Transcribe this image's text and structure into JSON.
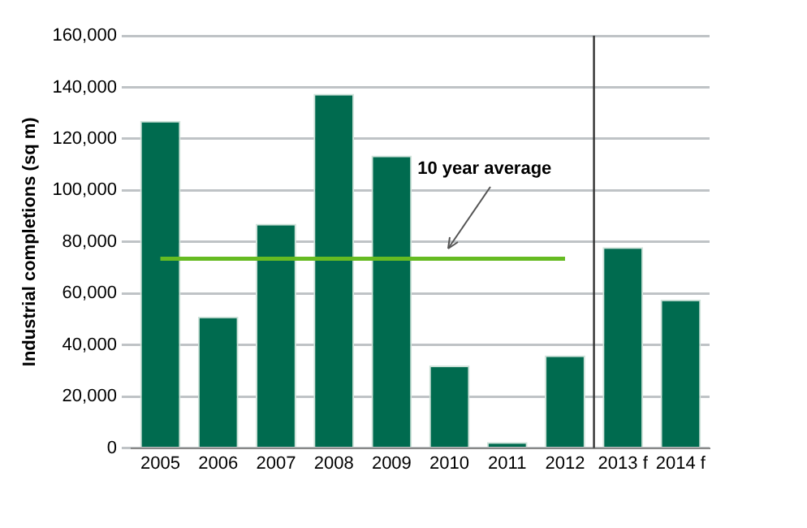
{
  "chart_data": {
    "type": "bar",
    "ylabel": "Industrial completions (sq m)",
    "categories": [
      "2005",
      "2006",
      "2007",
      "2008",
      "2009",
      "2010",
      "2011",
      "2012",
      "2013 f",
      "2014 f"
    ],
    "series": [
      {
        "color": "#006b4f",
        "values": [
          127000,
          51000,
          87000,
          137500,
          113500,
          32000,
          2300,
          36000,
          78000,
          57600
        ]
      },
      {
        "type": "line",
        "name": "10 year average",
        "color": "#66bb22",
        "values": [
          73500,
          73500,
          73500,
          73500,
          73500,
          73500,
          73500,
          73500,
          null,
          null
        ]
      }
    ],
    "ylim": [
      0,
      160000
    ],
    "yticks": [
      0,
      {
        "value": 20000,
        "label": "20,000"
      },
      {
        "value": 40000,
        "label": "40,000"
      },
      {
        "value": 60000,
        "label": "60,000"
      },
      {
        "value": 80000,
        "label": "80,000"
      },
      {
        "value": 100000,
        "label": "100,000"
      },
      {
        "value": 120000,
        "label": "120,000"
      },
      {
        "value": 140000,
        "label": "140,000"
      },
      {
        "value": 160000,
        "label": "160,000"
      }
    ],
    "ref_lines": [
      {
        "axis": "x",
        "value": "2013 f",
        "color": "#333333"
      }
    ],
    "grid": "y",
    "legend": false,
    "marker": "none"
  }
}
